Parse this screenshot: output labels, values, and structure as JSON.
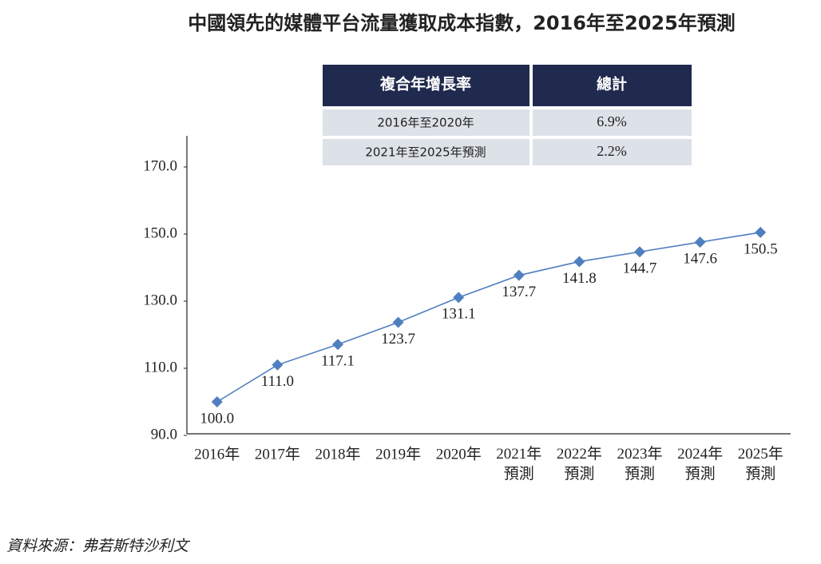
{
  "chart_data": {
    "type": "line",
    "title": "中國領先的媒體平台流量獲取成本指數，2016年至2025年預測",
    "categories": [
      "2016年",
      "2017年",
      "2018年",
      "2019年",
      "2020年",
      "2021年\n預測",
      "2022年\n預測",
      "2023年\n預測",
      "2024年\n預測",
      "2025年\n預測"
    ],
    "series": [
      {
        "color": "#4f7fbf",
        "values": [
          100.0,
          111.0,
          117.1,
          123.7,
          131.1,
          137.7,
          141.8,
          144.7,
          147.6,
          150.5
        ],
        "value_labels": [
          "100.0",
          "111.0",
          "117.1",
          "123.7",
          "131.1",
          "137.7",
          "141.8",
          "144.7",
          "147.6",
          "150.5"
        ]
      }
    ],
    "ylim": [
      90,
      180
    ],
    "yticks": [
      {
        "value": 90,
        "label": "90.0"
      },
      {
        "value": 110,
        "label": "110.0"
      },
      {
        "value": 130,
        "label": "130.0"
      },
      {
        "value": 150,
        "label": "150.0"
      },
      {
        "value": 170,
        "label": "170.0"
      }
    ],
    "grid": false
  },
  "table": {
    "headers": [
      "複合年增長率",
      "總計"
    ],
    "rows": [
      [
        "2016年至2020年",
        "6.9%"
      ],
      [
        "2021年至2025年預測",
        "2.2%"
      ]
    ]
  },
  "source": "資料來源：弗若斯特沙利文"
}
